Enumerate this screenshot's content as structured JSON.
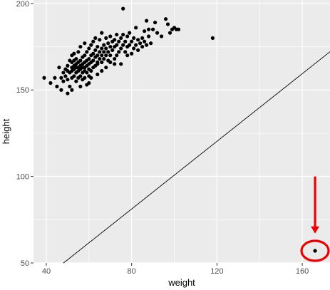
{
  "chart_data": {
    "type": "scatter",
    "xlabel": "weight",
    "ylabel": "height",
    "xlim": [
      34,
      173
    ],
    "ylim": [
      50,
      202
    ],
    "x_ticks": [
      40,
      80,
      120,
      160
    ],
    "y_ticks": [
      50,
      100,
      150,
      200
    ],
    "x_minor": [
      60,
      100,
      140
    ],
    "y_minor": [
      75,
      125,
      175
    ],
    "grid": true,
    "colors": {
      "panel": "#ebebeb",
      "grid": "#ffffff",
      "point": "#000000",
      "line": "#000000",
      "annotation": "#ee0000"
    },
    "reference_line": {
      "x": [
        48,
        173
      ],
      "y": [
        49.9,
        172.1
      ],
      "note": "diagonal line y = 0.978x + 3"
    },
    "points": [
      [
        39,
        157
      ],
      [
        42,
        154
      ],
      [
        44,
        157
      ],
      [
        45,
        152
      ],
      [
        46,
        163
      ],
      [
        47,
        150
      ],
      [
        47,
        157
      ],
      [
        48,
        160
      ],
      [
        48,
        155
      ],
      [
        49,
        162
      ],
      [
        49,
        158
      ],
      [
        50,
        148
      ],
      [
        50,
        156
      ],
      [
        50,
        161
      ],
      [
        50,
        164
      ],
      [
        51,
        160
      ],
      [
        51,
        167
      ],
      [
        51,
        152
      ],
      [
        52,
        157
      ],
      [
        52,
        161
      ],
      [
        52,
        163
      ],
      [
        52,
        166
      ],
      [
        52,
        170
      ],
      [
        53,
        158
      ],
      [
        53,
        162
      ],
      [
        53,
        164
      ],
      [
        53,
        167
      ],
      [
        53,
        171
      ],
      [
        54,
        155
      ],
      [
        54,
        160
      ],
      [
        54,
        163
      ],
      [
        54,
        165
      ],
      [
        54,
        168
      ],
      [
        55,
        157
      ],
      [
        55,
        161
      ],
      [
        55,
        163
      ],
      [
        55,
        166
      ],
      [
        55,
        172
      ],
      [
        56,
        158
      ],
      [
        56,
        162
      ],
      [
        56,
        164
      ],
      [
        56,
        167
      ],
      [
        56,
        175
      ],
      [
        57,
        156
      ],
      [
        57,
        160
      ],
      [
        57,
        163
      ],
      [
        57,
        165
      ],
      [
        57,
        169
      ],
      [
        58,
        157
      ],
      [
        58,
        161
      ],
      [
        58,
        163
      ],
      [
        58,
        166
      ],
      [
        58,
        170
      ],
      [
        58,
        177
      ],
      [
        59,
        160
      ],
      [
        59,
        164
      ],
      [
        59,
        167
      ],
      [
        59,
        172
      ],
      [
        60,
        158
      ],
      [
        60,
        162
      ],
      [
        60,
        165
      ],
      [
        60,
        168
      ],
      [
        60,
        174
      ],
      [
        61,
        161
      ],
      [
        61,
        166
      ],
      [
        61,
        170
      ],
      [
        61,
        176
      ],
      [
        62,
        163
      ],
      [
        62,
        167
      ],
      [
        62,
        171
      ],
      [
        62,
        178
      ],
      [
        63,
        164
      ],
      [
        63,
        169
      ],
      [
        63,
        173
      ],
      [
        63,
        180
      ],
      [
        64,
        165
      ],
      [
        64,
        170
      ],
      [
        64,
        175
      ],
      [
        64,
        166
      ],
      [
        65,
        168
      ],
      [
        65,
        172
      ],
      [
        65,
        179
      ],
      [
        66,
        166
      ],
      [
        66,
        170
      ],
      [
        66,
        174
      ],
      [
        66,
        183
      ],
      [
        67,
        168
      ],
      [
        67,
        172
      ],
      [
        67,
        176
      ],
      [
        68,
        170
      ],
      [
        68,
        174
      ],
      [
        68,
        180
      ],
      [
        69,
        167
      ],
      [
        69,
        172
      ],
      [
        69,
        177
      ],
      [
        70,
        170
      ],
      [
        70,
        175
      ],
      [
        70,
        181
      ],
      [
        71,
        173
      ],
      [
        71,
        178
      ],
      [
        72,
        165
      ],
      [
        72,
        175
      ],
      [
        72,
        179
      ],
      [
        73,
        170
      ],
      [
        73,
        176
      ],
      [
        73,
        182
      ],
      [
        74,
        172
      ],
      [
        74,
        178
      ],
      [
        75,
        174
      ],
      [
        75,
        180
      ],
      [
        75,
        165
      ],
      [
        76,
        176
      ],
      [
        76,
        182
      ],
      [
        76,
        197
      ],
      [
        77,
        172
      ],
      [
        77,
        178
      ],
      [
        78,
        170
      ],
      [
        78,
        175
      ],
      [
        78,
        181
      ],
      [
        79,
        176
      ],
      [
        79,
        183
      ],
      [
        80,
        171
      ],
      [
        80,
        178
      ],
      [
        81,
        174
      ],
      [
        81,
        180
      ],
      [
        82,
        176
      ],
      [
        82,
        186
      ],
      [
        83,
        173
      ],
      [
        83,
        179
      ],
      [
        84,
        177
      ],
      [
        85,
        175
      ],
      [
        85,
        180
      ],
      [
        86,
        178
      ],
      [
        86,
        184
      ],
      [
        87,
        176
      ],
      [
        87,
        190
      ],
      [
        88,
        181
      ],
      [
        88,
        185
      ],
      [
        89,
        177
      ],
      [
        90,
        185
      ],
      [
        91,
        189
      ],
      [
        92,
        183
      ],
      [
        94,
        181
      ],
      [
        96,
        191
      ],
      [
        97,
        188
      ],
      [
        98,
        183
      ],
      [
        99,
        185
      ],
      [
        100,
        186
      ],
      [
        101,
        185
      ],
      [
        102,
        185
      ],
      [
        64,
        159
      ],
      [
        66,
        161
      ],
      [
        68,
        163
      ],
      [
        59,
        153
      ],
      [
        61,
        157
      ],
      [
        52,
        150
      ],
      [
        56,
        152
      ],
      [
        60,
        154
      ],
      [
        70,
        166
      ],
      [
        72,
        168
      ],
      [
        118,
        180
      ],
      [
        166,
        57
      ]
    ],
    "annotations": [
      {
        "type": "arrow",
        "color": "#ee0000",
        "from": [
          166,
          100
        ],
        "to": [
          166,
          67
        ]
      },
      {
        "type": "circle",
        "color": "#ee0000",
        "center": [
          166,
          57
        ]
      }
    ]
  }
}
